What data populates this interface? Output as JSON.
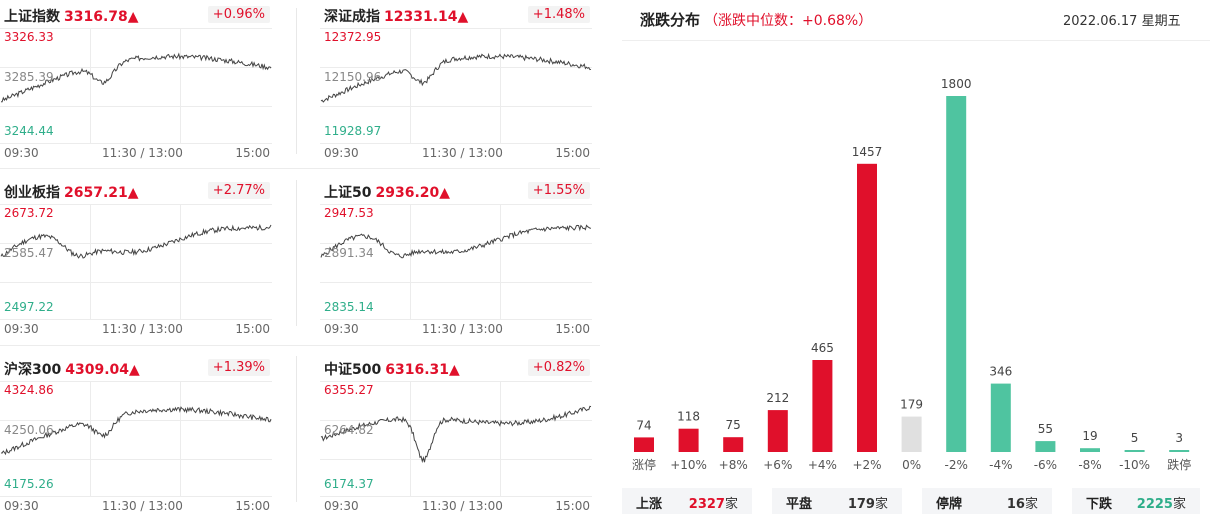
{
  "colors": {
    "up": "#e0102b",
    "down": "#4fc4a0",
    "flat": "#e0e0e0",
    "line": "#444444",
    "grid": "#ececec"
  },
  "time_axis": {
    "start": "09:30",
    "mid": "11:30 / 13:00",
    "end": "15:00"
  },
  "indices": [
    {
      "name": "上证指数",
      "value": "3316.78▲",
      "pct": "+0.96%",
      "max": "3326.33",
      "mid": "3285.39",
      "min": "3244.44",
      "seed": 3,
      "shape": "dip-mid"
    },
    {
      "name": "深证成指",
      "value": "12331.14▲",
      "pct": "+1.48%",
      "max": "12372.95",
      "mid": "12150.96",
      "min": "11928.97",
      "seed": 7,
      "shape": "dip-mid"
    },
    {
      "name": "创业板指",
      "value": "2657.21▲",
      "pct": "+2.77%",
      "max": "2673.72",
      "mid": "2585.47",
      "min": "2497.22",
      "seed": 11,
      "shape": "early-high"
    },
    {
      "name": "上证50",
      "value": "2936.20▲",
      "pct": "+1.55%",
      "max": "2947.53",
      "mid": "2891.34",
      "min": "2835.14",
      "seed": 5,
      "shape": "early-high"
    },
    {
      "name": "沪深300",
      "value": "4309.04▲",
      "pct": "+1.39%",
      "max": "4324.86",
      "mid": "4250.06",
      "min": "4175.26",
      "seed": 13,
      "shape": "dip-mid"
    },
    {
      "name": "中证500",
      "value": "6316.31▲",
      "pct": "+0.82%",
      "max": "6355.27",
      "mid": "6264.82",
      "min": "6174.37",
      "seed": 17,
      "shape": "deep-dip"
    }
  ],
  "distribution": {
    "title": "涨跌分布",
    "subtitle": "（涨跌中位数：+0.68%）",
    "date": "2022.06.17 星期五"
  },
  "chart_data": {
    "type": "bar",
    "categories": [
      "涨停",
      "+10%",
      "+8%",
      "+6%",
      "+4%",
      "+2%",
      "0%",
      "-2%",
      "-4%",
      "-6%",
      "-8%",
      "-10%",
      "跌停"
    ],
    "values": [
      74,
      118,
      75,
      212,
      465,
      1457,
      179,
      1800,
      346,
      55,
      19,
      5,
      3
    ],
    "colors": [
      "up",
      "up",
      "up",
      "up",
      "up",
      "up",
      "flat",
      "down",
      "down",
      "down",
      "down",
      "down",
      "down"
    ],
    "title": "涨跌分布",
    "ylim": [
      0,
      1800
    ]
  },
  "summary": [
    {
      "label": "上涨",
      "value": "2327",
      "unit": "家",
      "color": "#e0102b"
    },
    {
      "label": "平盘",
      "value": "179",
      "unit": "家",
      "color": "#333333"
    },
    {
      "label": "停牌",
      "value": "16",
      "unit": "家",
      "color": "#333333"
    },
    {
      "label": "下跌",
      "value": "2225",
      "unit": "家",
      "color": "#2fae8a"
    }
  ]
}
